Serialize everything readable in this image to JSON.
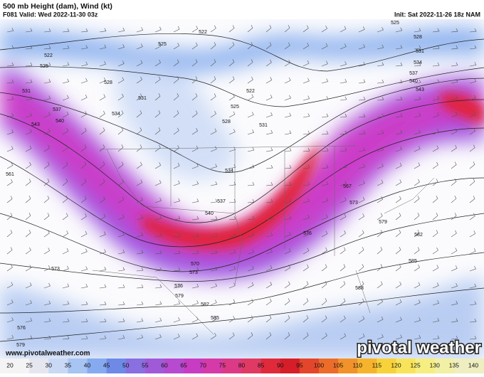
{
  "header": {
    "title": "500 mb Height (dam), Wind (kt)",
    "valid": "F081 Valid: Wed 2022-11-30 03z",
    "init": "Init: Sat 2022-11-26 18z NAM"
  },
  "contour_labels": [
    522,
    525,
    525,
    528,
    531,
    534,
    537,
    540,
    543,
    522,
    525,
    528,
    531,
    531,
    534,
    537,
    540,
    543,
    522,
    525,
    528,
    531,
    534,
    561,
    567,
    573,
    579,
    582,
    585,
    588,
    576,
    537,
    540,
    573,
    573,
    570,
    576,
    579,
    582,
    585,
    576,
    579
  ],
  "colorbar": {
    "ticks": [
      20,
      25,
      30,
      35,
      40,
      45,
      50,
      55,
      60,
      65,
      70,
      75,
      80,
      85,
      90,
      95,
      100,
      105,
      110,
      115,
      120,
      125,
      130,
      135,
      140
    ]
  },
  "footer": {
    "website": "www.pivotalweather.com",
    "logo": "pivotal weather"
  }
}
